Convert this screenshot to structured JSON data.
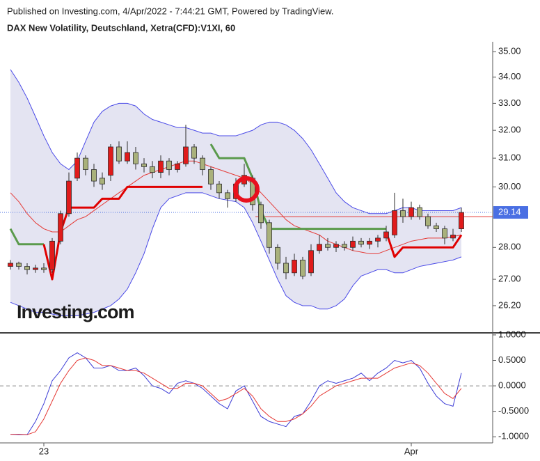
{
  "caption": "Published on Investing.com, 4/Apr/2022 - 7:44:21 GMT, Powered by TradingView.",
  "watermark": "Investing.com",
  "chart_data": [
    {
      "type": "candlestick",
      "title": "DAX New Volatility, Deutschland, Xetra(CFD):V1XI, 60",
      "log_scale": true,
      "categories": [
        null,
        null,
        null,
        null,
        "23",
        null,
        null,
        null,
        null,
        null,
        null,
        null,
        null,
        null,
        null,
        null,
        null,
        null,
        null,
        null,
        null,
        null,
        null,
        null,
        null,
        null,
        null,
        null,
        null,
        null,
        null,
        null,
        null,
        null,
        null,
        null,
        null,
        null,
        null,
        null,
        null,
        null,
        null,
        null,
        null,
        null,
        null,
        null,
        "Apr",
        null,
        null,
        null,
        null,
        null,
        null
      ],
      "open": [
        27.4,
        27.5,
        27.4,
        27.3,
        27.35,
        27.3,
        28.2,
        29.1,
        30.3,
        31.0,
        30.6,
        30.3,
        30.4,
        31.4,
        30.9,
        31.2,
        30.8,
        30.7,
        30.5,
        30.9,
        30.6,
        30.8,
        31.4,
        31.0,
        30.6,
        30.1,
        29.8,
        29.6,
        30.1,
        30.3,
        29.4,
        28.8,
        28.0,
        27.5,
        27.2,
        27.6,
        27.2,
        27.9,
        28.1,
        28.0,
        28.1,
        28.0,
        28.2,
        28.1,
        28.2,
        28.3,
        28.4,
        29.2,
        29.0,
        29.3,
        29.0,
        28.7,
        28.6,
        28.3,
        28.6
      ],
      "high": [
        27.6,
        27.55,
        27.5,
        27.45,
        27.5,
        28.3,
        29.2,
        30.5,
        31.2,
        31.1,
        30.8,
        30.5,
        31.5,
        31.6,
        31.6,
        31.4,
        31.0,
        30.9,
        31.1,
        31.0,
        30.9,
        32.2,
        31.5,
        31.1,
        30.7,
        30.2,
        29.9,
        30.3,
        30.8,
        30.4,
        29.5,
        28.9,
        28.1,
        27.7,
        27.8,
        27.7,
        28.1,
        28.4,
        28.3,
        28.2,
        28.2,
        28.35,
        28.3,
        28.3,
        28.4,
        28.7,
        29.8,
        29.6,
        29.5,
        29.4,
        29.1,
        28.8,
        28.7,
        28.6,
        29.3
      ],
      "low": [
        27.3,
        27.3,
        27.15,
        27.2,
        27.2,
        27.2,
        28.1,
        29.0,
        30.2,
        30.4,
        30.0,
        29.9,
        30.2,
        30.8,
        30.8,
        30.6,
        30.5,
        30.3,
        30.3,
        30.4,
        30.5,
        30.7,
        30.8,
        30.4,
        29.9,
        29.6,
        29.3,
        29.5,
        30.0,
        29.2,
        28.6,
        27.8,
        27.3,
        27.0,
        27.1,
        27.0,
        27.1,
        27.8,
        27.9,
        27.85,
        27.9,
        27.9,
        28.0,
        27.95,
        28.0,
        28.2,
        28.3,
        28.8,
        28.9,
        28.9,
        28.6,
        28.5,
        28.1,
        28.2,
        28.5
      ],
      "close": [
        27.5,
        27.4,
        27.3,
        27.35,
        27.3,
        28.2,
        29.1,
        30.2,
        31.0,
        30.6,
        30.2,
        30.1,
        31.4,
        30.9,
        31.2,
        30.8,
        30.7,
        30.5,
        30.9,
        30.6,
        30.8,
        31.4,
        31.0,
        30.6,
        30.1,
        29.8,
        29.6,
        30.1,
        30.4,
        29.4,
        28.8,
        28.0,
        27.5,
        27.2,
        27.6,
        27.1,
        27.9,
        28.1,
        28.0,
        28.1,
        28.0,
        28.2,
        28.1,
        28.2,
        28.3,
        28.5,
        29.2,
        29.0,
        29.3,
        29.0,
        28.7,
        28.6,
        28.3,
        28.4,
        29.14
      ],
      "up_color": "#e01b1b",
      "down_color": "#a9b17b",
      "outline_color": "#2b2b2b",
      "bands": {
        "color": "#4a4ae8",
        "fill": "#e4e4f2",
        "upper": [
          34.3,
          33.8,
          33.2,
          32.5,
          31.8,
          31.2,
          30.8,
          30.6,
          30.9,
          31.6,
          32.3,
          32.7,
          32.9,
          33.0,
          33.0,
          32.9,
          32.6,
          32.4,
          32.3,
          32.2,
          32.1,
          32.1,
          32.0,
          31.9,
          31.9,
          31.8,
          31.8,
          31.8,
          31.9,
          32.0,
          32.2,
          32.3,
          32.3,
          32.2,
          32.0,
          31.7,
          31.3,
          30.8,
          30.3,
          29.8,
          29.5,
          29.3,
          29.2,
          29.1,
          29.1,
          29.1,
          29.2,
          29.3,
          29.3,
          29.2,
          29.2,
          29.2,
          29.2,
          29.2,
          29.3
        ],
        "lower": [
          26.3,
          26.2,
          26.1,
          26.0,
          26.0,
          25.95,
          25.9,
          25.9,
          25.9,
          25.95,
          26.0,
          26.1,
          26.2,
          26.4,
          26.7,
          27.2,
          27.8,
          28.6,
          29.3,
          29.6,
          29.7,
          29.8,
          29.8,
          29.8,
          29.7,
          29.6,
          29.55,
          29.5,
          29.3,
          28.8,
          28.2,
          27.6,
          27.0,
          26.5,
          26.3,
          26.2,
          26.2,
          26.1,
          26.1,
          26.2,
          26.4,
          26.8,
          27.1,
          27.2,
          27.3,
          27.3,
          27.2,
          27.2,
          27.3,
          27.4,
          27.45,
          27.5,
          27.55,
          27.6,
          27.7
        ]
      },
      "series": [
        {
          "color": "#e53935",
          "width": 1,
          "values": [
            29.8,
            29.5,
            29.1,
            28.8,
            28.6,
            28.5,
            28.5,
            28.7,
            28.9,
            29.0,
            29.2,
            29.4,
            29.6,
            29.8,
            30.0,
            30.2,
            30.4,
            30.5,
            30.6,
            30.7,
            30.8,
            30.9,
            30.9,
            30.8,
            30.7,
            30.6,
            30.5,
            30.4,
            30.3,
            30.1,
            29.8,
            29.5,
            29.2,
            28.9,
            28.7,
            28.6,
            28.5,
            28.4,
            28.2,
            28.1,
            28.0,
            27.9,
            27.85,
            27.8,
            27.8,
            27.9,
            28.0,
            28.1,
            28.2,
            28.25,
            28.3,
            28.3,
            28.3,
            28.35,
            28.4
          ]
        },
        {
          "color": "#5a9a4c",
          "width": 3,
          "values": [
            28.6,
            28.1,
            28.1,
            28.1,
            28.1,
            null,
            null,
            null,
            null,
            null,
            null,
            null,
            null,
            null,
            null,
            null,
            null,
            null,
            null,
            null,
            null,
            null,
            null,
            null,
            31.5,
            31.0,
            31.0,
            31.0,
            31.0,
            30.3,
            29.2,
            28.6,
            28.6,
            28.6,
            28.6,
            28.6,
            28.6,
            28.6,
            28.6,
            28.6,
            28.6,
            28.6,
            28.6,
            28.6,
            28.6,
            28.6,
            null,
            null,
            null,
            null,
            null,
            null,
            null,
            null,
            null
          ]
        },
        {
          "color": "#e00000",
          "width": 3,
          "values": [
            null,
            null,
            null,
            null,
            28.1,
            27.0,
            28.5,
            29.3,
            29.3,
            29.3,
            29.3,
            29.6,
            29.6,
            29.6,
            30.0,
            30.0,
            30.0,
            30.0,
            30.0,
            30.0,
            30.0,
            30.0,
            30.0,
            30.0,
            null,
            null,
            null,
            null,
            null,
            null,
            null,
            null,
            null,
            null,
            null,
            null,
            null,
            null,
            null,
            null,
            null,
            null,
            null,
            null,
            null,
            28.5,
            27.7,
            28.0,
            28.0,
            28.0,
            28.0,
            28.0,
            28.0,
            28.0,
            28.4
          ]
        }
      ],
      "last_price": 29.14,
      "last_price_color": "#4a6fe3",
      "reference_line": {
        "value": 29.0,
        "color": "#e53935"
      },
      "ylim": [
        25.4,
        35.4
      ],
      "yticks": [
        {
          "value": 35,
          "label": "35.00"
        },
        {
          "value": 34,
          "label": "34.00"
        },
        {
          "value": 33,
          "label": "33.00"
        },
        {
          "value": 32,
          "label": "32.00"
        },
        {
          "value": 31,
          "label": "31.00"
        },
        {
          "value": 30,
          "label": "30.00"
        },
        {
          "value": 28,
          "label": "28.00"
        },
        {
          "value": 27,
          "label": "27.00"
        },
        {
          "value": 26.2,
          "label": "26.20"
        }
      ]
    },
    {
      "type": "line",
      "series": [
        {
          "color": "#3b3bd6",
          "values": [
            -0.95,
            -0.96,
            -0.96,
            -0.7,
            -0.35,
            0.1,
            0.3,
            0.55,
            0.65,
            0.55,
            0.35,
            0.35,
            0.4,
            0.3,
            0.3,
            0.35,
            0.2,
            0.0,
            -0.05,
            -0.15,
            0.05,
            0.1,
            0.05,
            -0.05,
            -0.2,
            -0.35,
            -0.45,
            -0.1,
            0.0,
            -0.3,
            -0.6,
            -0.7,
            -0.75,
            -0.8,
            -0.6,
            -0.55,
            -0.3,
            0.0,
            0.1,
            0.05,
            0.1,
            0.15,
            0.25,
            0.1,
            0.25,
            0.35,
            0.5,
            0.45,
            0.5,
            0.35,
            0.05,
            -0.2,
            -0.35,
            -0.4,
            0.25
          ]
        },
        {
          "color": "#e53935",
          "values": [
            -0.95,
            -0.95,
            -0.96,
            -0.9,
            -0.65,
            -0.3,
            0.05,
            0.3,
            0.5,
            0.55,
            0.5,
            0.4,
            0.4,
            0.35,
            0.3,
            0.3,
            0.25,
            0.15,
            0.05,
            -0.05,
            -0.05,
            0.05,
            0.05,
            0.0,
            -0.15,
            -0.3,
            -0.25,
            -0.15,
            -0.05,
            -0.2,
            -0.45,
            -0.6,
            -0.7,
            -0.7,
            -0.65,
            -0.55,
            -0.4,
            -0.2,
            -0.1,
            0.0,
            0.05,
            0.1,
            0.15,
            0.15,
            0.15,
            0.25,
            0.35,
            0.4,
            0.45,
            0.4,
            0.25,
            0.05,
            -0.15,
            -0.25,
            -0.05
          ]
        }
      ],
      "hline": 0,
      "ylim": [
        -1.12,
        1.04
      ],
      "yticks": [
        {
          "value": 1,
          "label": "1.0000"
        },
        {
          "value": 0.5,
          "label": "0.5000"
        },
        {
          "value": 0,
          "label": "0.0000"
        },
        {
          "value": -0.5,
          "label": "-0.5000"
        },
        {
          "value": -1,
          "label": "-1.0000"
        }
      ]
    }
  ]
}
